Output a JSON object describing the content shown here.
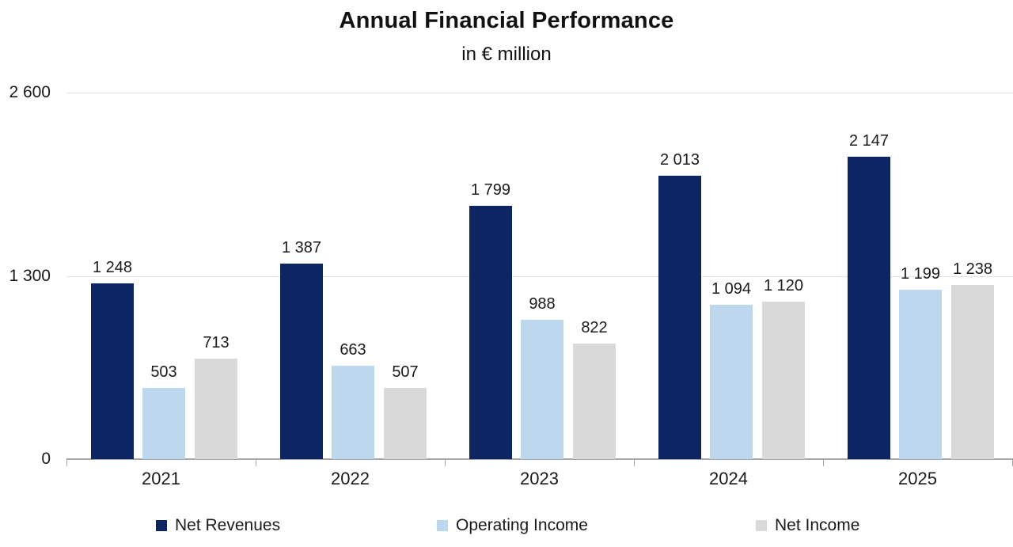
{
  "chart_data": {
    "type": "bar",
    "title": "Annual Financial Performance",
    "subtitle": "in € million",
    "unit": "€ million",
    "categories": [
      "2021",
      "2022",
      "2023",
      "2024",
      "2025"
    ],
    "series": [
      {
        "name": "Net Revenues",
        "color": "#0e2563",
        "values": [
          1248,
          1387,
          1799,
          2013,
          2147
        ],
        "labels": [
          "1 248",
          "1 387",
          "1 799",
          "2 013",
          "2 147"
        ]
      },
      {
        "name": "Operating Income",
        "color": "#bdd7ee",
        "values": [
          503,
          663,
          988,
          1094,
          1199
        ],
        "labels": [
          "503",
          "663",
          "988",
          "1 094",
          "1 199"
        ]
      },
      {
        "name": "Net Income",
        "color": "#d9d9d9",
        "values": [
          713,
          507,
          822,
          1120,
          1238
        ],
        "labels": [
          "713",
          "507",
          "822",
          "1 120",
          "1 238"
        ]
      }
    ],
    "y_axis": {
      "min": 0,
      "max": 2600,
      "ticks": [
        {
          "value": 0,
          "label": "0"
        },
        {
          "value": 1300,
          "label": "1 300"
        },
        {
          "value": 2600,
          "label": "2 600"
        }
      ]
    },
    "grid": "horizontal",
    "legend_position": "bottom",
    "colors": {
      "axis_line": "#a6a6a6",
      "gridline": "#e2e2e2",
      "text": "#1a1a1a"
    }
  }
}
